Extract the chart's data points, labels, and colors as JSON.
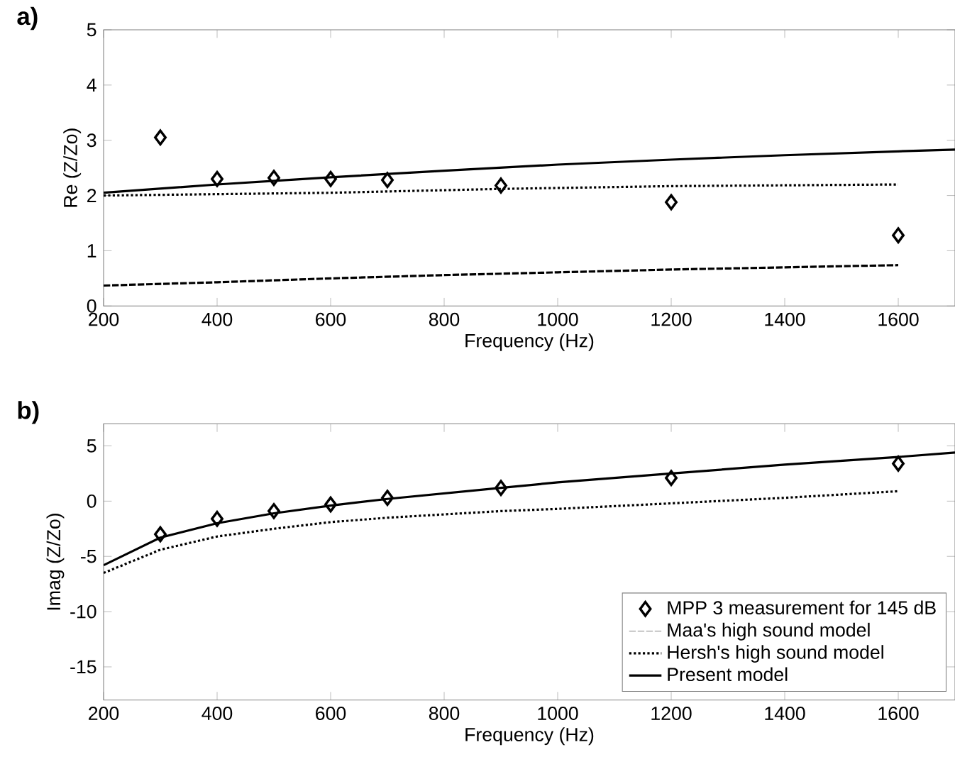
{
  "chart_data": [
    {
      "type": "line",
      "title": "a)",
      "xlabel": "Frequency (Hz)",
      "ylabel": "Re (Z/Zo)",
      "xlim": [
        200,
        1700
      ],
      "ylim": [
        0,
        5
      ],
      "xticks": [
        200,
        400,
        600,
        800,
        1000,
        1200,
        1400,
        1600
      ],
      "yticks": [
        0,
        1,
        2,
        3,
        4,
        5
      ],
      "series": [
        {
          "type": "scatter",
          "color": "#000000",
          "marker": "diamond",
          "x": [
            300,
            400,
            500,
            600,
            700,
            900,
            1200,
            1600
          ],
          "values": [
            3.05,
            2.3,
            2.32,
            2.3,
            2.28,
            2.18,
            1.88,
            1.28
          ]
        },
        {
          "color": "#000000",
          "line_style": "dashed",
          "x": [
            200,
            400,
            600,
            800,
            1000,
            1200,
            1400,
            1600
          ],
          "values": [
            0.37,
            0.43,
            0.5,
            0.56,
            0.61,
            0.66,
            0.7,
            0.74
          ]
        },
        {
          "color": "#000000",
          "line_style": "dotted",
          "x": [
            200,
            600,
            900,
            1200,
            1600
          ],
          "values": [
            2.0,
            2.05,
            2.12,
            2.17,
            2.2
          ]
        },
        {
          "color": "#000000",
          "line_style": "solid",
          "x": [
            200,
            400,
            600,
            800,
            1000,
            1200,
            1400,
            1600,
            1700
          ],
          "values": [
            2.05,
            2.2,
            2.33,
            2.45,
            2.56,
            2.65,
            2.73,
            2.8,
            2.83
          ]
        }
      ]
    },
    {
      "type": "line",
      "title": "b)",
      "xlabel": "Frequency (Hz)",
      "ylabel": "Imag (Z/Zo)",
      "xlim": [
        200,
        1700
      ],
      "ylim": [
        -18,
        7
      ],
      "xticks": [
        200,
        400,
        600,
        800,
        1000,
        1200,
        1400,
        1600
      ],
      "yticks": [
        -15,
        -10,
        -5,
        0,
        5
      ],
      "legend": "bottom right",
      "series": [
        {
          "name": "MPP 3 measurement for 145 dB",
          "type": "scatter",
          "color": "#000000",
          "marker": "diamond",
          "x": [
            300,
            400,
            500,
            600,
            700,
            900,
            1200,
            1600
          ],
          "values": [
            -3.0,
            -1.6,
            -0.9,
            -0.3,
            0.3,
            1.2,
            2.1,
            3.4
          ]
        },
        {
          "name": "Maa's high sound model",
          "color": "#808080",
          "line_style": "dashed"
        },
        {
          "name": "Hersh's high sound model",
          "color": "#000000",
          "line_style": "dotted",
          "x": [
            200,
            300,
            400,
            500,
            600,
            700,
            800,
            900,
            1000,
            1200,
            1400,
            1600
          ],
          "values": [
            -6.5,
            -4.4,
            -3.2,
            -2.5,
            -1.9,
            -1.5,
            -1.2,
            -0.9,
            -0.7,
            -0.2,
            0.3,
            0.9
          ]
        },
        {
          "name": "Present model",
          "color": "#000000",
          "line_style": "solid",
          "x": [
            200,
            300,
            400,
            500,
            600,
            700,
            800,
            900,
            1000,
            1200,
            1400,
            1600,
            1700
          ],
          "values": [
            -5.8,
            -3.3,
            -2.0,
            -1.1,
            -0.4,
            0.2,
            0.7,
            1.2,
            1.7,
            2.5,
            3.3,
            4.0,
            4.4
          ]
        }
      ]
    }
  ]
}
